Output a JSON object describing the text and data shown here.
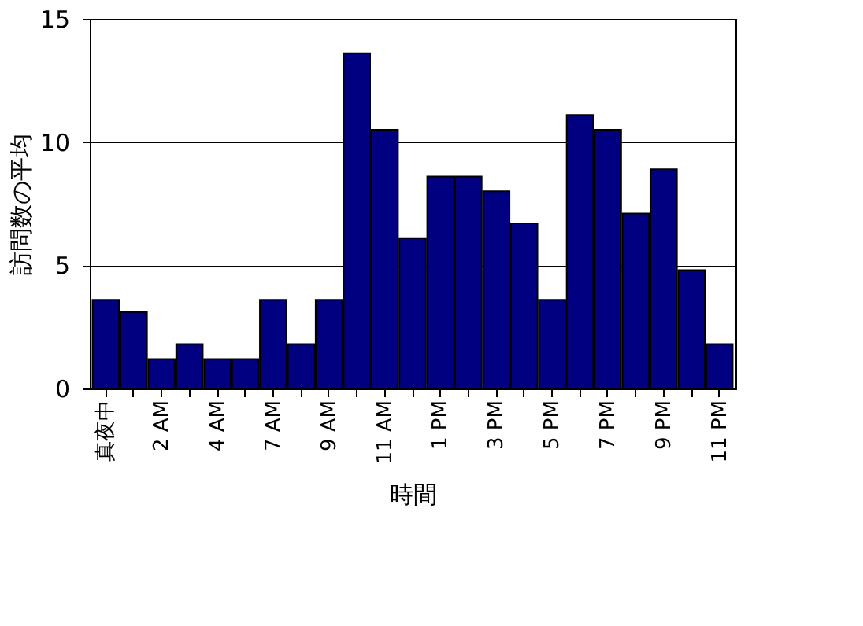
{
  "chart_data": {
    "type": "bar",
    "xlabel": "時間",
    "ylabel": "訪問数の平均",
    "categories": [
      "真夜中",
      null,
      "2 AM",
      null,
      "4 AM",
      null,
      "7 AM",
      null,
      "9 AM",
      null,
      "11 AM",
      null,
      "1 PM",
      null,
      "3 PM",
      null,
      "5 PM",
      null,
      "7 PM",
      null,
      "9 PM",
      null,
      "11 PM"
    ],
    "values": [
      3.6,
      3.1,
      1.2,
      1.8,
      1.2,
      1.2,
      3.6,
      1.8,
      3.6,
      13.6,
      10.5,
      6.1,
      8.6,
      8.6,
      8.0,
      6.7,
      3.6,
      11.1,
      10.5,
      7.1,
      8.9,
      4.8,
      1.8
    ],
    "color": "#000080",
    "ylim": [
      0,
      15
    ],
    "yticks": [
      0,
      5,
      10,
      15
    ],
    "grid": "y"
  }
}
